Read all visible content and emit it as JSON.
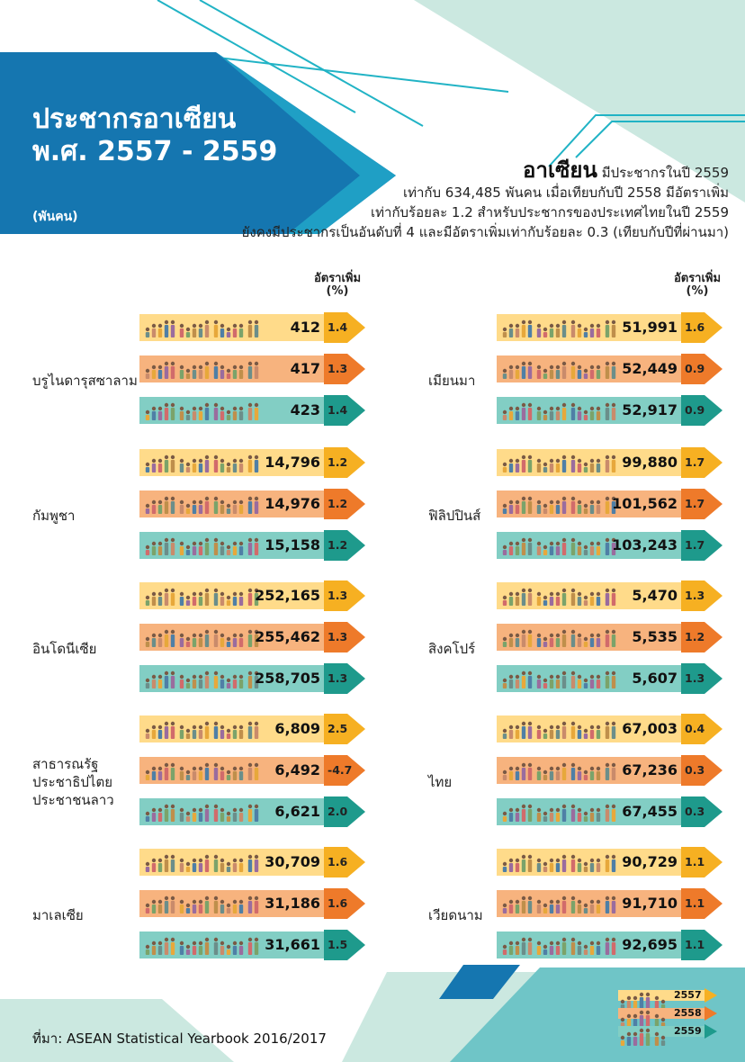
{
  "header": {
    "title_line1": "ประชากรอาเซียน",
    "title_line2": "พ.ศ. 2557 - 2559",
    "unit": "(พันคน)"
  },
  "summary": {
    "headline": "อาเซียน",
    "line1_rest": "มีประชากรในปี 2559",
    "line2": "เท่ากับ 634,485 พันคน เมื่อเทียบกับปี 2558 มีอัตราเพิ่ม",
    "line3": "เท่ากับร้อยละ 1.2 สำหรับประชากรของประเทศไทยในปี 2559",
    "line4": "ยังคงมีประชากรเป็นอันดับที่ 4 และมีอัตราเพิ่มเท่ากับร้อยละ 0.3 (เทียบกับปีที่ผ่านมา)"
  },
  "column_header": {
    "label": "อัตราเพิ่ม",
    "unit": "(%)"
  },
  "colors": {
    "year_2557": "#FFDB8A",
    "year_2558": "#F7B37E",
    "year_2559": "#82CEC4",
    "rate_2557": "#F6B022",
    "rate_2558": "#EE7A2A",
    "rate_2559": "#1E9A8C",
    "title_panel": "#1576B0",
    "accent_teal": "#21B3C5"
  },
  "icons": [
    "people-silhouette-icon",
    "arrow-tip-icon"
  ],
  "chart_data": {
    "type": "bar",
    "years": [
      "2557",
      "2558",
      "2559"
    ],
    "countries": [
      {
        "name": "บรูไนดารุสซาลาม",
        "values": [
          "412",
          "417",
          "423"
        ],
        "rates": [
          "1.4",
          "1.3",
          "1.4"
        ]
      },
      {
        "name": "กัมพูชา",
        "values": [
          "14,796",
          "14,976",
          "15,158"
        ],
        "rates": [
          "1.2",
          "1.2",
          "1.2"
        ]
      },
      {
        "name": "อินโดนีเซีย",
        "values": [
          "252,165",
          "255,462",
          "258,705"
        ],
        "rates": [
          "1.3",
          "1.3",
          "1.3"
        ]
      },
      {
        "name": "สาธารณรัฐ\nประชาธิปไตย\nประชาชนลาว",
        "values": [
          "6,809",
          "6,492",
          "6,621"
        ],
        "rates": [
          "2.5",
          "-4.7",
          "2.0"
        ]
      },
      {
        "name": "มาเลเซีย",
        "values": [
          "30,709",
          "31,186",
          "31,661"
        ],
        "rates": [
          "1.6",
          "1.6",
          "1.5"
        ]
      },
      {
        "name": "เมียนมา",
        "values": [
          "51,991",
          "52,449",
          "52,917"
        ],
        "rates": [
          "1.6",
          "0.9",
          "0.9"
        ]
      },
      {
        "name": "ฟิลิปปินส์",
        "values": [
          "99,880",
          "101,562",
          "103,243"
        ],
        "rates": [
          "1.7",
          "1.7",
          "1.7"
        ]
      },
      {
        "name": "สิงคโปร์",
        "values": [
          "5,470",
          "5,535",
          "5,607"
        ],
        "rates": [
          "1.3",
          "1.2",
          "1.3"
        ]
      },
      {
        "name": "ไทย",
        "values": [
          "67,003",
          "67,236",
          "67,455"
        ],
        "rates": [
          "0.4",
          "0.3",
          "0.3"
        ]
      },
      {
        "name": "เวียดนาม",
        "values": [
          "90,729",
          "91,710",
          "92,695"
        ],
        "rates": [
          "1.1",
          "1.1",
          "1.1"
        ]
      }
    ],
    "legend": [
      "2557",
      "2558",
      "2559"
    ]
  },
  "footer": {
    "source": "ที่มา: ASEAN Statistical Yearbook 2016/2017"
  }
}
